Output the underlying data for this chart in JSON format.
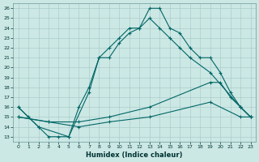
{
  "xlabel": "Humidex (Indice chaleur)",
  "bg_color": "#cce8e4",
  "grid_color": "#aacccc",
  "line_color": "#006666",
  "xlim": [
    -0.5,
    23.5
  ],
  "ylim": [
    12.5,
    26.5
  ],
  "xticks": [
    0,
    1,
    2,
    3,
    4,
    5,
    6,
    7,
    8,
    9,
    10,
    11,
    12,
    13,
    14,
    15,
    16,
    17,
    18,
    19,
    20,
    21,
    22,
    23
  ],
  "yticks": [
    13,
    14,
    15,
    16,
    17,
    18,
    19,
    20,
    21,
    22,
    23,
    24,
    25,
    26
  ],
  "series": [
    {
      "x": [
        0,
        1,
        2,
        3,
        4,
        5,
        6,
        7,
        8,
        9,
        10,
        11,
        12,
        13,
        14,
        15,
        16,
        17,
        18,
        19,
        20,
        21,
        22,
        23
      ],
      "y": [
        16,
        15,
        14,
        13,
        13,
        13,
        16,
        18,
        21,
        22,
        23,
        24,
        24,
        26,
        26,
        24,
        23.5,
        22,
        21,
        21,
        19.5,
        17.5,
        16,
        15
      ]
    },
    {
      "x": [
        0,
        2,
        5,
        7,
        8,
        9,
        10,
        11,
        12,
        13,
        14,
        15,
        16,
        17,
        19,
        22,
        23
      ],
      "y": [
        16,
        14,
        13,
        17.5,
        21,
        21,
        22.5,
        23.5,
        24,
        25,
        24,
        23,
        22,
        21,
        19.5,
        16,
        15
      ]
    },
    {
      "x": [
        0,
        3,
        6,
        9,
        13,
        19,
        20,
        21,
        22,
        23
      ],
      "y": [
        15,
        14.5,
        14.5,
        15,
        16,
        18.5,
        18.5,
        17,
        16,
        15
      ]
    },
    {
      "x": [
        0,
        3,
        6,
        9,
        13,
        19,
        22,
        23
      ],
      "y": [
        15,
        14.5,
        14,
        14.5,
        15,
        16.5,
        15,
        15
      ]
    }
  ]
}
